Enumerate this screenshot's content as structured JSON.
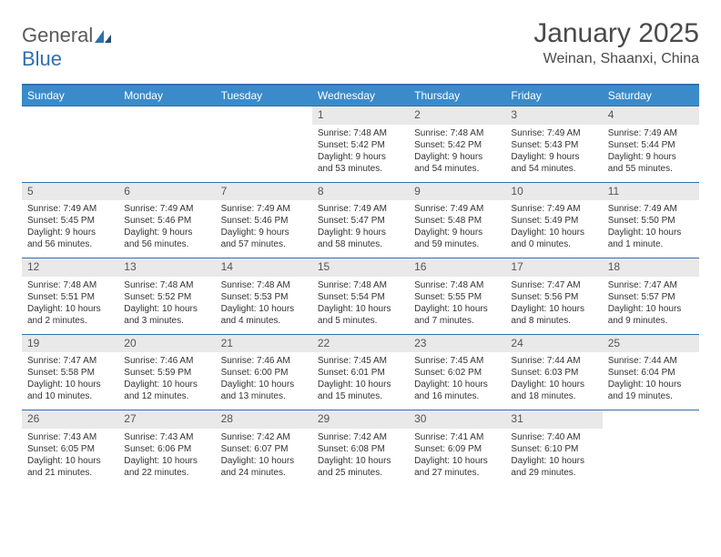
{
  "brand": {
    "name_part1": "General",
    "name_part2": "Blue"
  },
  "title": "January 2025",
  "location": "Weinan, Shaanxi, China",
  "colors": {
    "header_bg": "#3b8bca",
    "border": "#2f6fb0",
    "daynum_bg": "#e9e9e9",
    "text": "#333333",
    "title_text": "#4a4a4a"
  },
  "day_headers": [
    "Sunday",
    "Monday",
    "Tuesday",
    "Wednesday",
    "Thursday",
    "Friday",
    "Saturday"
  ],
  "weeks": [
    [
      {
        "n": "",
        "sr": "",
        "ss": "",
        "dl": ""
      },
      {
        "n": "",
        "sr": "",
        "ss": "",
        "dl": ""
      },
      {
        "n": "",
        "sr": "",
        "ss": "",
        "dl": ""
      },
      {
        "n": "1",
        "sr": "Sunrise: 7:48 AM",
        "ss": "Sunset: 5:42 PM",
        "dl": "Daylight: 9 hours and 53 minutes."
      },
      {
        "n": "2",
        "sr": "Sunrise: 7:48 AM",
        "ss": "Sunset: 5:42 PM",
        "dl": "Daylight: 9 hours and 54 minutes."
      },
      {
        "n": "3",
        "sr": "Sunrise: 7:49 AM",
        "ss": "Sunset: 5:43 PM",
        "dl": "Daylight: 9 hours and 54 minutes."
      },
      {
        "n": "4",
        "sr": "Sunrise: 7:49 AM",
        "ss": "Sunset: 5:44 PM",
        "dl": "Daylight: 9 hours and 55 minutes."
      }
    ],
    [
      {
        "n": "5",
        "sr": "Sunrise: 7:49 AM",
        "ss": "Sunset: 5:45 PM",
        "dl": "Daylight: 9 hours and 56 minutes."
      },
      {
        "n": "6",
        "sr": "Sunrise: 7:49 AM",
        "ss": "Sunset: 5:46 PM",
        "dl": "Daylight: 9 hours and 56 minutes."
      },
      {
        "n": "7",
        "sr": "Sunrise: 7:49 AM",
        "ss": "Sunset: 5:46 PM",
        "dl": "Daylight: 9 hours and 57 minutes."
      },
      {
        "n": "8",
        "sr": "Sunrise: 7:49 AM",
        "ss": "Sunset: 5:47 PM",
        "dl": "Daylight: 9 hours and 58 minutes."
      },
      {
        "n": "9",
        "sr": "Sunrise: 7:49 AM",
        "ss": "Sunset: 5:48 PM",
        "dl": "Daylight: 9 hours and 59 minutes."
      },
      {
        "n": "10",
        "sr": "Sunrise: 7:49 AM",
        "ss": "Sunset: 5:49 PM",
        "dl": "Daylight: 10 hours and 0 minutes."
      },
      {
        "n": "11",
        "sr": "Sunrise: 7:49 AM",
        "ss": "Sunset: 5:50 PM",
        "dl": "Daylight: 10 hours and 1 minute."
      }
    ],
    [
      {
        "n": "12",
        "sr": "Sunrise: 7:48 AM",
        "ss": "Sunset: 5:51 PM",
        "dl": "Daylight: 10 hours and 2 minutes."
      },
      {
        "n": "13",
        "sr": "Sunrise: 7:48 AM",
        "ss": "Sunset: 5:52 PM",
        "dl": "Daylight: 10 hours and 3 minutes."
      },
      {
        "n": "14",
        "sr": "Sunrise: 7:48 AM",
        "ss": "Sunset: 5:53 PM",
        "dl": "Daylight: 10 hours and 4 minutes."
      },
      {
        "n": "15",
        "sr": "Sunrise: 7:48 AM",
        "ss": "Sunset: 5:54 PM",
        "dl": "Daylight: 10 hours and 5 minutes."
      },
      {
        "n": "16",
        "sr": "Sunrise: 7:48 AM",
        "ss": "Sunset: 5:55 PM",
        "dl": "Daylight: 10 hours and 7 minutes."
      },
      {
        "n": "17",
        "sr": "Sunrise: 7:47 AM",
        "ss": "Sunset: 5:56 PM",
        "dl": "Daylight: 10 hours and 8 minutes."
      },
      {
        "n": "18",
        "sr": "Sunrise: 7:47 AM",
        "ss": "Sunset: 5:57 PM",
        "dl": "Daylight: 10 hours and 9 minutes."
      }
    ],
    [
      {
        "n": "19",
        "sr": "Sunrise: 7:47 AM",
        "ss": "Sunset: 5:58 PM",
        "dl": "Daylight: 10 hours and 10 minutes."
      },
      {
        "n": "20",
        "sr": "Sunrise: 7:46 AM",
        "ss": "Sunset: 5:59 PM",
        "dl": "Daylight: 10 hours and 12 minutes."
      },
      {
        "n": "21",
        "sr": "Sunrise: 7:46 AM",
        "ss": "Sunset: 6:00 PM",
        "dl": "Daylight: 10 hours and 13 minutes."
      },
      {
        "n": "22",
        "sr": "Sunrise: 7:45 AM",
        "ss": "Sunset: 6:01 PM",
        "dl": "Daylight: 10 hours and 15 minutes."
      },
      {
        "n": "23",
        "sr": "Sunrise: 7:45 AM",
        "ss": "Sunset: 6:02 PM",
        "dl": "Daylight: 10 hours and 16 minutes."
      },
      {
        "n": "24",
        "sr": "Sunrise: 7:44 AM",
        "ss": "Sunset: 6:03 PM",
        "dl": "Daylight: 10 hours and 18 minutes."
      },
      {
        "n": "25",
        "sr": "Sunrise: 7:44 AM",
        "ss": "Sunset: 6:04 PM",
        "dl": "Daylight: 10 hours and 19 minutes."
      }
    ],
    [
      {
        "n": "26",
        "sr": "Sunrise: 7:43 AM",
        "ss": "Sunset: 6:05 PM",
        "dl": "Daylight: 10 hours and 21 minutes."
      },
      {
        "n": "27",
        "sr": "Sunrise: 7:43 AM",
        "ss": "Sunset: 6:06 PM",
        "dl": "Daylight: 10 hours and 22 minutes."
      },
      {
        "n": "28",
        "sr": "Sunrise: 7:42 AM",
        "ss": "Sunset: 6:07 PM",
        "dl": "Daylight: 10 hours and 24 minutes."
      },
      {
        "n": "29",
        "sr": "Sunrise: 7:42 AM",
        "ss": "Sunset: 6:08 PM",
        "dl": "Daylight: 10 hours and 25 minutes."
      },
      {
        "n": "30",
        "sr": "Sunrise: 7:41 AM",
        "ss": "Sunset: 6:09 PM",
        "dl": "Daylight: 10 hours and 27 minutes."
      },
      {
        "n": "31",
        "sr": "Sunrise: 7:40 AM",
        "ss": "Sunset: 6:10 PM",
        "dl": "Daylight: 10 hours and 29 minutes."
      },
      {
        "n": "",
        "sr": "",
        "ss": "",
        "dl": ""
      }
    ]
  ]
}
